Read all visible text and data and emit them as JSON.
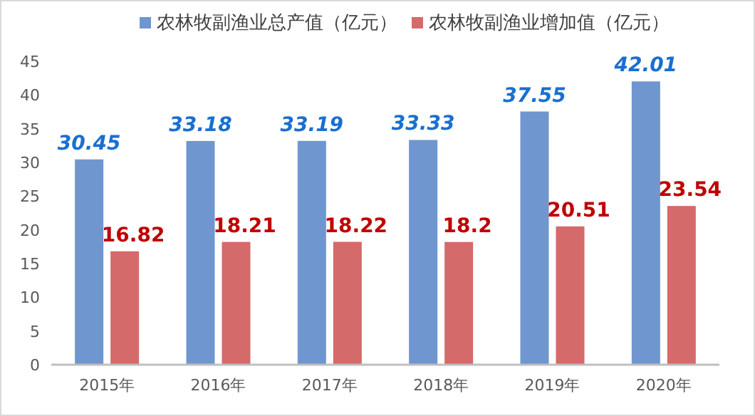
{
  "chart_data": {
    "type": "bar",
    "categories": [
      "2015年",
      "2016年",
      "2017年",
      "2018年",
      "2019年",
      "2020年"
    ],
    "series": [
      {
        "name": "农林牧副渔业总产值（亿元）",
        "color": "#6f96cf",
        "values": [
          30.45,
          33.18,
          33.19,
          33.33,
          37.55,
          42.01
        ]
      },
      {
        "name": "农林牧副渔业增加值（亿元）",
        "color": "#d46a6a",
        "values": [
          16.82,
          18.21,
          18.22,
          18.2,
          20.51,
          23.54
        ]
      }
    ],
    "ylim": [
      0,
      45
    ],
    "yticks": [
      0,
      5,
      10,
      15,
      20,
      25,
      30,
      35,
      40,
      45
    ],
    "data_labels": true,
    "legend": "top",
    "grid": false
  }
}
